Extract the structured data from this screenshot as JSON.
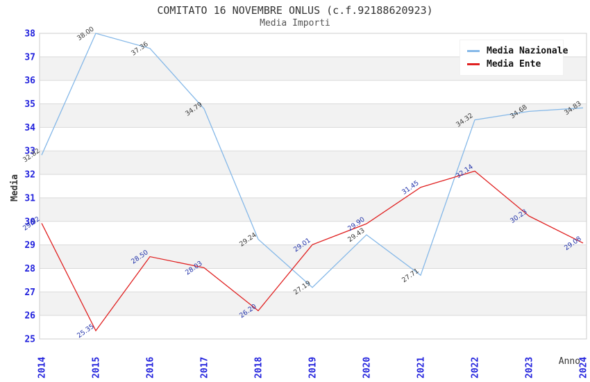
{
  "header": {
    "title": "COMITATO 16 NOVEMBRE ONLUS (c.f.92188620923)",
    "subtitle": "Media Importi"
  },
  "axes": {
    "y_title": "Media",
    "x_title": "Anno",
    "tick_color": "#2222dd"
  },
  "legend": {
    "position": "top-right",
    "items": [
      {
        "label": "Media Nazionale",
        "color": "#85b8e8"
      },
      {
        "label": "Media Ente",
        "color": "#e02020"
      }
    ]
  },
  "chart_data": {
    "type": "line",
    "title": "COMITATO 16 NOVEMBRE ONLUS (c.f.92188620923)",
    "subtitle": "Media Importi",
    "xlabel": "Anno",
    "ylabel": "Media",
    "ylim": [
      25,
      38
    ],
    "grid": true,
    "band_colors": {
      "odd": "#ffffff",
      "even": "#f2f2f2"
    },
    "gridline_color": "#d9d9d9",
    "border_color": "#cccccc",
    "legend_position": "top-right",
    "categories": [
      "2014",
      "2015",
      "2016",
      "2017",
      "2018",
      "2019",
      "2020",
      "2021",
      "2022",
      "2023",
      "2024"
    ],
    "series": [
      {
        "name": "Media Nazionale",
        "color": "#85b8e8",
        "label_color": "#3a3a3a",
        "values": [
          32.82,
          38.0,
          37.36,
          34.79,
          29.24,
          27.19,
          29.43,
          27.71,
          34.32,
          34.68,
          34.83
        ]
      },
      {
        "name": "Media Ente",
        "color": "#e02020",
        "label_color": "#2233aa",
        "values": [
          29.92,
          25.35,
          28.5,
          28.03,
          26.2,
          29.01,
          29.9,
          31.45,
          32.14,
          30.23,
          29.08
        ]
      }
    ]
  }
}
